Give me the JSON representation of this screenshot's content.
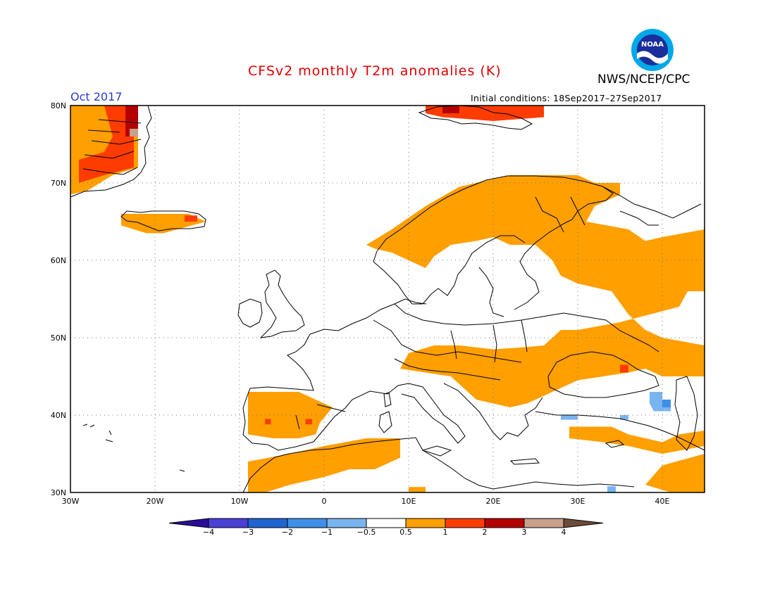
{
  "header": {
    "title": "CFSv2 monthly T2m anomalies (K)",
    "agency": "NWS/NCEP/CPC",
    "month": "Oct 2017",
    "initial_conditions": "Initial conditions: 18Sep2017–27Sep2017",
    "logo_text": "NOAA"
  },
  "map": {
    "lon_range": [
      -30,
      45
    ],
    "lat_range": [
      30,
      80
    ],
    "lat_labels": [
      "80N",
      "70N",
      "60N",
      "50N",
      "40N",
      "30N"
    ],
    "lon_labels": [
      "30W",
      "20W",
      "10W",
      "0",
      "10E",
      "20E",
      "30E",
      "40E"
    ],
    "gridlines": "dotted"
  },
  "colorbar": {
    "labels": [
      "−4",
      "−3",
      "−2",
      "−1",
      "−0.5",
      "0.5",
      "1",
      "2",
      "3",
      "4"
    ],
    "colors": [
      "#2a0c9c",
      "#4a3fd6",
      "#1f64d1",
      "#3f8fe8",
      "#7ab4f0",
      "#ffffff",
      "#ff9f00",
      "#ff3c00",
      "#b40000",
      "#c8a08c",
      "#6e4a3a"
    ]
  },
  "anomaly_colors": {
    "warm_0.5_1": "#ff9f00",
    "warm_1_2": "#ff3c00",
    "warm_2_3": "#b40000",
    "warm_3_4": "#c8a08c",
    "cool_-1_-0.5": "#7ab4f0",
    "cool_-2_-1": "#3f8fe8"
  }
}
